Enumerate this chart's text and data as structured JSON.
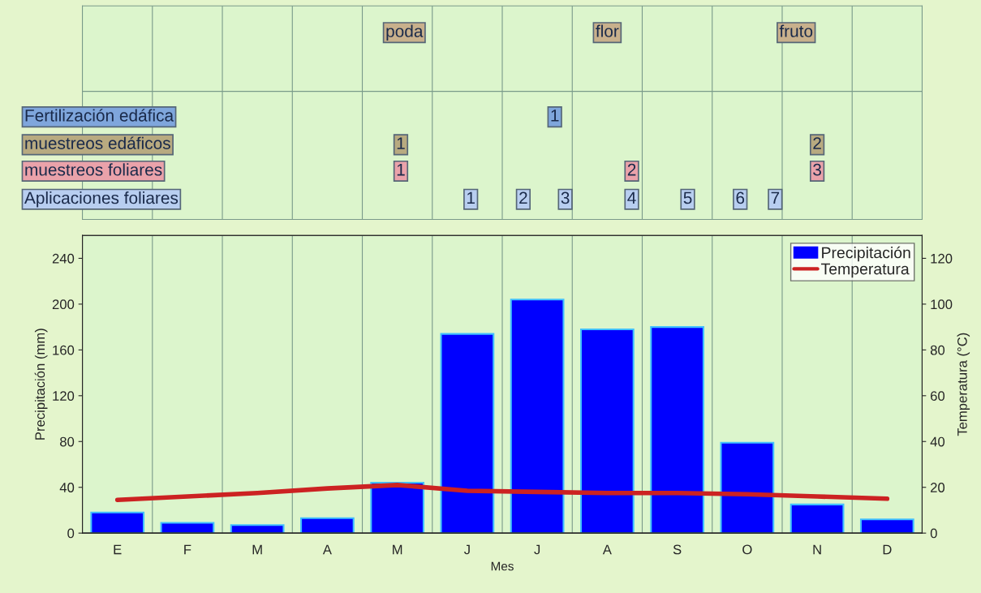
{
  "chart_data": {
    "type": "bar",
    "categories": [
      "E",
      "F",
      "M",
      "A",
      "M",
      "J",
      "J",
      "A",
      "S",
      "O",
      "N",
      "D"
    ],
    "series": [
      {
        "name": "Precipitación",
        "color": "#0000ff",
        "values": [
          18,
          9,
          7,
          13,
          44,
          174,
          204,
          178,
          180,
          79,
          25,
          12
        ]
      },
      {
        "name": "Temperatura",
        "color": "#cc2222",
        "type": "line",
        "axis": "y2",
        "values": [
          14.5,
          16,
          17.5,
          19.5,
          21,
          18.5,
          18,
          17.5,
          17.5,
          17,
          16,
          15
        ]
      }
    ],
    "xlabel": "Mes",
    "ylabel": "Precipitación (mm)",
    "y2label": "Temperatura (°C)",
    "ylim": [
      0,
      260
    ],
    "yticks": [
      0,
      40,
      80,
      120,
      160,
      200,
      240
    ],
    "y2lim": [
      0,
      130
    ],
    "y2ticks": [
      0,
      20,
      40,
      60,
      80,
      100,
      120
    ],
    "grid": "x",
    "legend": "top right",
    "annotations": [
      "poda",
      "flor",
      "fruto",
      "Fertilización edáfica",
      "muestreos edáficos",
      "muestreos foliares",
      "Aplicaciones foliares",
      "1",
      "1",
      "2",
      "1",
      "2",
      "3",
      "1",
      "2",
      "3",
      "4",
      "5",
      "6",
      "7"
    ]
  }
}
